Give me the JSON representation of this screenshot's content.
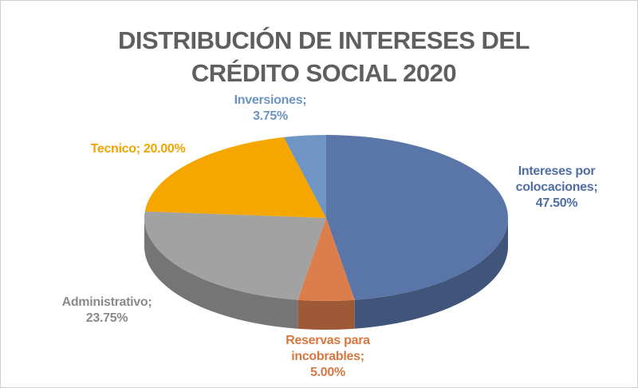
{
  "chart_data": {
    "type": "pie",
    "title": [
      "DISTRIBUCIÓN DE INTERESES DEL",
      "CRÉDITO SOCIAL 2020"
    ],
    "categories": [
      "Intereses por colocaciones",
      "Reservas para incobrables",
      "Administrativo",
      "Tecnico",
      "Inversiones"
    ],
    "values": [
      47.5,
      5,
      23.75,
      20,
      3.75
    ],
    "value_labels": [
      "47.50%",
      "5.00%",
      "23.75%",
      "20.00%",
      "3.75%"
    ],
    "label_separator": ";",
    "colors": [
      "#5a76a9",
      "#dc7d4c",
      "#a2a2a2",
      "#f5a700",
      "#6f95c4"
    ],
    "label_colors": [
      "#4f6da3",
      "#d9763f",
      "#8a8a8a",
      "#f0a400",
      "#6d93c2"
    ],
    "three_d": true
  }
}
